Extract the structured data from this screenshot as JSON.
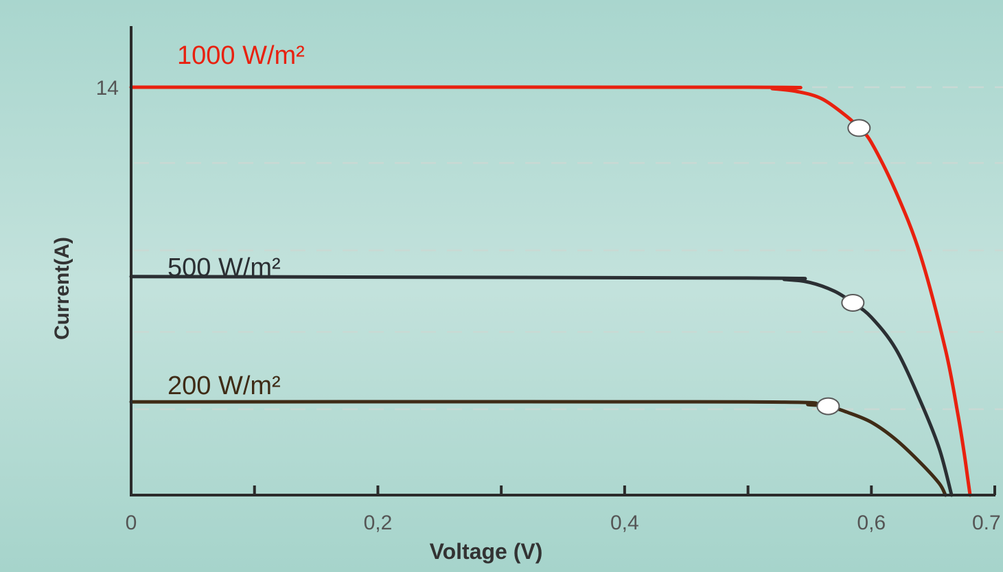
{
  "chart_data": {
    "type": "line",
    "xlabel": "Voltage  (V)",
    "ylabel": "Current(A)",
    "x_ticks": [
      {
        "value": 0,
        "label": "0"
      },
      {
        "value": 0.2,
        "label": "0,2"
      },
      {
        "value": 0.4,
        "label": "0,4"
      },
      {
        "value": 0.6,
        "label": "0,6"
      },
      {
        "value": 0.7,
        "label": "0.7"
      }
    ],
    "x_minor_ticks": [
      0.1,
      0.3,
      0.5
    ],
    "y_ticks": [
      {
        "value": 14,
        "label": "14"
      }
    ],
    "xlim": [
      0,
      0.7
    ],
    "ylim": [
      0,
      16
    ],
    "grid": "horizontal dashed",
    "series": [
      {
        "name": "1000 W/m²",
        "color": "#e8210f",
        "points": [
          [
            0,
            14
          ],
          [
            0.5,
            14.0
          ],
          [
            0.52,
            13.95
          ],
          [
            0.54,
            13.85
          ],
          [
            0.56,
            13.6
          ],
          [
            0.58,
            13.0
          ],
          [
            0.59,
            12.6
          ],
          [
            0.6,
            12.1
          ],
          [
            0.62,
            10.4
          ],
          [
            0.64,
            8.2
          ],
          [
            0.66,
            5.0
          ],
          [
            0.67,
            2.8
          ],
          [
            0.675,
            1.5
          ],
          [
            0.678,
            0.6
          ],
          [
            0.68,
            0
          ]
        ],
        "mpp": [
          0.59,
          12.6
        ]
      },
      {
        "name": "500 W/m²",
        "color": "#2b2f33",
        "points": [
          [
            0,
            7.5
          ],
          [
            0.5,
            7.45
          ],
          [
            0.53,
            7.4
          ],
          [
            0.55,
            7.3
          ],
          [
            0.57,
            7.0
          ],
          [
            0.585,
            6.6
          ],
          [
            0.6,
            6.1
          ],
          [
            0.62,
            5.0
          ],
          [
            0.64,
            3.2
          ],
          [
            0.655,
            1.6
          ],
          [
            0.665,
            0
          ]
        ],
        "mpp": [
          0.585,
          6.6
        ]
      },
      {
        "name": "200 W/m²",
        "color": "#3f2b16",
        "points": [
          [
            0,
            3.2
          ],
          [
            0.5,
            3.2
          ],
          [
            0.55,
            3.1
          ],
          [
            0.565,
            3.05
          ],
          [
            0.58,
            2.85
          ],
          [
            0.6,
            2.5
          ],
          [
            0.62,
            1.9
          ],
          [
            0.64,
            1.1
          ],
          [
            0.655,
            0.4
          ],
          [
            0.66,
            0
          ]
        ],
        "mpp": [
          0.565,
          3.05
        ]
      }
    ]
  }
}
